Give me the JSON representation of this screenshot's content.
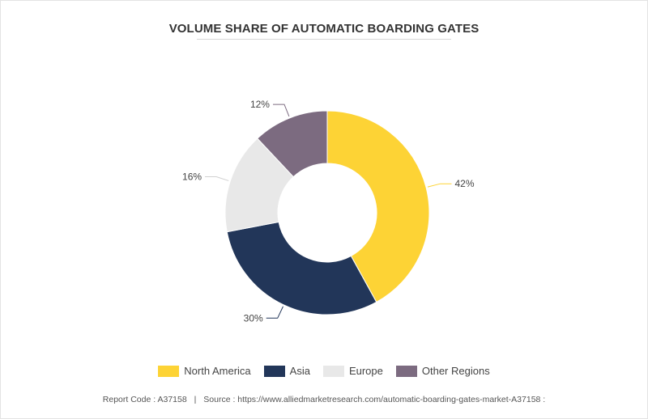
{
  "chart_data": {
    "type": "pie",
    "title": "VOLUME SHARE OF AUTOMATIC BOARDING GATES",
    "categories": [
      "North America",
      "Asia",
      "Europe",
      "Other Regions"
    ],
    "values": [
      42,
      30,
      16,
      12
    ],
    "labels": [
      "42%",
      "30%",
      "16%",
      "12%"
    ],
    "colors": [
      "#fdd335",
      "#223659",
      "#e8e8e8",
      "#7c6b80"
    ],
    "donut": true,
    "legend_position": "bottom"
  },
  "footer": {
    "report_code": "Report Code : A37158",
    "separator": "|",
    "source": "Source : https://www.alliedmarketresearch.com/automatic-boarding-gates-market-A37158 :"
  }
}
